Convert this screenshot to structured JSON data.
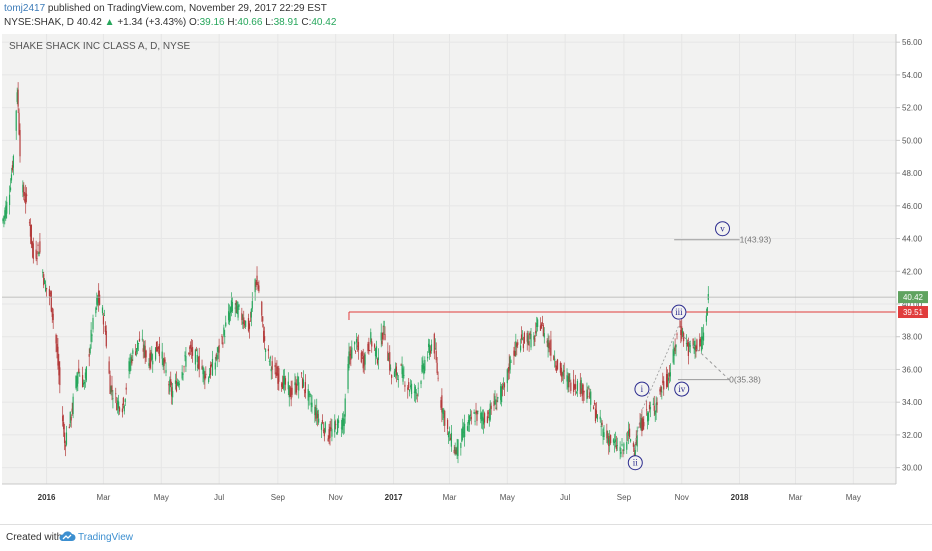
{
  "header": {
    "author": "tomj2417",
    "published": "published on TradingView.com, November 29, 2017 22:29 EST",
    "symbol": "NYSE:SHAK, D",
    "last": "40.42",
    "change": "+1.34 (+3.43%)",
    "o_label": "O:",
    "o_value": "39.16",
    "h_label": "H:",
    "h_value": "40.66",
    "l_label": "L:",
    "l_value": "38.91",
    "c_label": "C:",
    "c_value": "40.42",
    "up_arrow": "▲"
  },
  "footer": {
    "created": "Created with",
    "brand": "TradingView",
    "logo_icon": "tradingview-cloud-icon"
  },
  "colors": {
    "up": "#26a65b",
    "down": "#b33a3a",
    "resistance": "#e03c3c",
    "wave_label": "#2c2c8f",
    "fib": "#9a9a9a",
    "background": "#f2f2f1",
    "last_price_tag": "#5fa35f"
  },
  "chart_data": {
    "type": "candlestick",
    "title": "SHAKE SHACK INC CLASS A, D, NYSE",
    "interval": "D",
    "y_axis_side": "right",
    "ylim": [
      29,
      56.5
    ],
    "yticks": [
      "30.00",
      "32.00",
      "34.00",
      "36.00",
      "38.00",
      "40.00",
      "42.00",
      "44.00",
      "46.00",
      "48.00",
      "50.00",
      "52.00",
      "54.00",
      "56.00"
    ],
    "x_tick_labels": [
      "2016",
      "Mar",
      "May",
      "Jul",
      "Sep",
      "Nov",
      "2017",
      "Mar",
      "May",
      "Jul",
      "Sep",
      "Nov",
      "2018",
      "Mar",
      "May"
    ],
    "x_tick_dates": [
      "2016-01-01",
      "2016-03-01",
      "2016-05-01",
      "2016-07-01",
      "2016-09-01",
      "2016-11-01",
      "2017-01-01",
      "2017-03-01",
      "2017-05-01",
      "2017-07-01",
      "2017-09-01",
      "2017-11-01",
      "2018-01-01",
      "2018-03-01",
      "2018-05-01"
    ],
    "x_range": [
      "2015-11-15",
      "2018-06-15"
    ],
    "price_path": [
      [
        "2015-11-15",
        45.0
      ],
      [
        "2015-11-22",
        46.5
      ],
      [
        "2015-11-28",
        49.5
      ],
      [
        "2015-12-01",
        53.2
      ],
      [
        "2015-12-06",
        47.0
      ],
      [
        "2015-12-12",
        46.0
      ],
      [
        "2015-12-18",
        42.8
      ],
      [
        "2015-12-24",
        43.5
      ],
      [
        "2015-12-30",
        41.2
      ],
      [
        "2016-01-05",
        40.4
      ],
      [
        "2016-01-10",
        38.2
      ],
      [
        "2016-01-15",
        35.0
      ],
      [
        "2016-01-20",
        31.5
      ],
      [
        "2016-01-27",
        33.2
      ],
      [
        "2016-02-03",
        36.0
      ],
      [
        "2016-02-10",
        35.0
      ],
      [
        "2016-02-17",
        38.0
      ],
      [
        "2016-02-24",
        40.4
      ],
      [
        "2016-03-02",
        39.0
      ],
      [
        "2016-03-08",
        35.0
      ],
      [
        "2016-03-15",
        34.0
      ],
      [
        "2016-03-22",
        33.8
      ],
      [
        "2016-03-29",
        36.5
      ],
      [
        "2016-04-08",
        37.8
      ],
      [
        "2016-04-18",
        36.5
      ],
      [
        "2016-04-28",
        37.5
      ],
      [
        "2016-05-05",
        36.0
      ],
      [
        "2016-05-12",
        34.5
      ],
      [
        "2016-05-20",
        35.5
      ],
      [
        "2016-05-30",
        37.2
      ],
      [
        "2016-06-08",
        36.6
      ],
      [
        "2016-06-18",
        35.5
      ],
      [
        "2016-06-27",
        36.5
      ],
      [
        "2016-07-05",
        38.0
      ],
      [
        "2016-07-15",
        40.0
      ],
      [
        "2016-07-22",
        39.5
      ],
      [
        "2016-08-02",
        38.5
      ],
      [
        "2016-08-08",
        41.5
      ],
      [
        "2016-08-12",
        40.8
      ],
      [
        "2016-08-18",
        37.5
      ],
      [
        "2016-08-26",
        36.0
      ],
      [
        "2016-09-06",
        35.3
      ],
      [
        "2016-09-15",
        34.5
      ],
      [
        "2016-09-25",
        35.5
      ],
      [
        "2016-10-04",
        34.2
      ],
      [
        "2016-10-14",
        33.0
      ],
      [
        "2016-10-24",
        32.0
      ],
      [
        "2016-11-02",
        32.5
      ],
      [
        "2016-11-10",
        33.0
      ],
      [
        "2016-11-15",
        36.8
      ],
      [
        "2016-11-22",
        37.5
      ],
      [
        "2016-11-30",
        36.5
      ],
      [
        "2016-12-08",
        37.8
      ],
      [
        "2016-12-15",
        36.8
      ],
      [
        "2016-12-22",
        38.5
      ],
      [
        "2016-12-30",
        35.5
      ],
      [
        "2017-01-08",
        36.0
      ],
      [
        "2017-01-16",
        35.0
      ],
      [
        "2017-01-25",
        34.6
      ],
      [
        "2017-02-03",
        36.5
      ],
      [
        "2017-02-12",
        37.8
      ],
      [
        "2017-02-20",
        34.0
      ],
      [
        "2017-02-28",
        32.0
      ],
      [
        "2017-03-08",
        31.0
      ],
      [
        "2017-03-18",
        32.5
      ],
      [
        "2017-03-28",
        33.2
      ],
      [
        "2017-04-08",
        33.0
      ],
      [
        "2017-04-18",
        34.0
      ],
      [
        "2017-04-28",
        34.8
      ],
      [
        "2017-05-05",
        36.8
      ],
      [
        "2017-05-12",
        37.5
      ],
      [
        "2017-05-22",
        38.0
      ],
      [
        "2017-05-28",
        37.6
      ],
      [
        "2017-06-04",
        39.0
      ],
      [
        "2017-06-10",
        38.0
      ],
      [
        "2017-06-18",
        37.0
      ],
      [
        "2017-06-26",
        35.8
      ],
      [
        "2017-07-06",
        35.2
      ],
      [
        "2017-07-16",
        35.0
      ],
      [
        "2017-07-26",
        34.5
      ],
      [
        "2017-08-04",
        33.0
      ],
      [
        "2017-08-12",
        32.0
      ],
      [
        "2017-08-20",
        31.5
      ],
      [
        "2017-08-30",
        31.0
      ],
      [
        "2017-09-06",
        32.0
      ],
      [
        "2017-09-12",
        31.2
      ],
      [
        "2017-09-18",
        32.5
      ],
      [
        "2017-09-26",
        33.3
      ],
      [
        "2017-10-04",
        33.8
      ],
      [
        "2017-10-12",
        35.0
      ],
      [
        "2017-10-18",
        35.5
      ],
      [
        "2017-10-24",
        37.0
      ],
      [
        "2017-10-29",
        38.7
      ],
      [
        "2017-11-03",
        38.0
      ],
      [
        "2017-11-08",
        37.2
      ],
      [
        "2017-11-14",
        37.5
      ],
      [
        "2017-11-20",
        37.4
      ],
      [
        "2017-11-24",
        38.2
      ],
      [
        "2017-11-27",
        39.2
      ],
      [
        "2017-11-29",
        40.4
      ]
    ],
    "last_price": 40.42,
    "last_price_label": "40.42",
    "resistance": {
      "value": 39.51,
      "label": "39.51",
      "from": "2016-11-15"
    },
    "fib_levels": [
      {
        "label": "1(43.93)",
        "value": 43.93,
        "from": "2017-10-24",
        "to": "2018-01-01"
      },
      {
        "label": "0(35.38)",
        "value": 35.38,
        "from": "2017-10-28",
        "to": "2017-12-21"
      }
    ],
    "projection": [
      [
        "2017-11-03",
        38.0
      ],
      [
        "2017-12-21",
        35.38
      ]
    ],
    "wave_dashed": [
      [
        "2017-09-12",
        31.2
      ],
      [
        "2017-09-20",
        33.5
      ],
      [
        "2017-10-29",
        38.7
      ]
    ],
    "waves": [
      {
        "label": "i",
        "date": "2017-09-20",
        "price": 34.8
      },
      {
        "label": "ii",
        "date": "2017-09-13",
        "price": 30.3
      },
      {
        "label": "iii",
        "date": "2017-10-29",
        "price": 39.5
      },
      {
        "label": "iv",
        "date": "2017-11-01",
        "price": 34.8
      },
      {
        "label": "v",
        "date": "2017-12-14",
        "price": 44.6
      }
    ]
  }
}
